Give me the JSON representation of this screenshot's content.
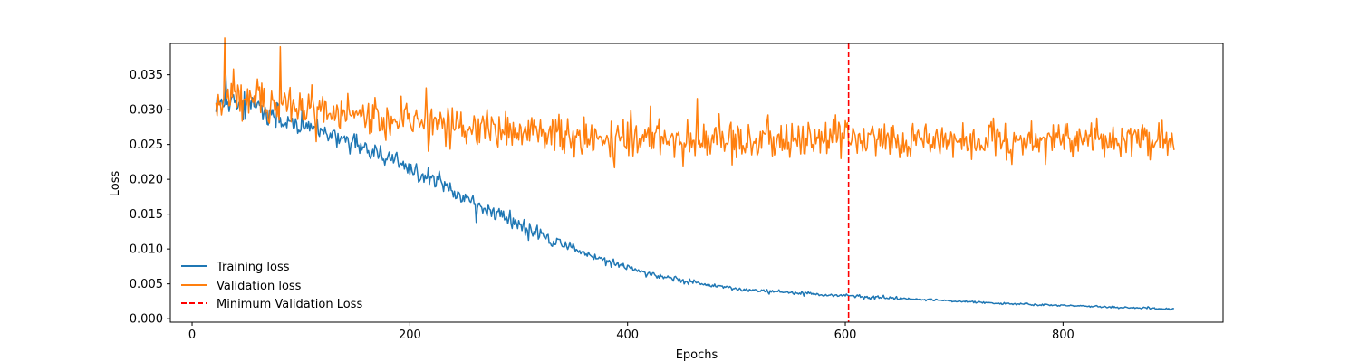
{
  "chart_data": {
    "type": "line",
    "title": "",
    "xlabel": "Epochs",
    "ylabel": "Loss",
    "xlim": [
      -20,
      947
    ],
    "ylim": [
      -0.0005,
      0.0395
    ],
    "x_ticks": [
      0,
      200,
      400,
      600,
      800
    ],
    "x_tick_labels": [
      "0",
      "200",
      "400",
      "600",
      "800"
    ],
    "y_ticks": [
      0.0,
      0.005,
      0.01,
      0.015,
      0.02,
      0.025,
      0.03,
      0.035
    ],
    "y_tick_labels": [
      "0.000",
      "0.005",
      "0.010",
      "0.015",
      "0.020",
      "0.025",
      "0.030",
      "0.035"
    ],
    "grid": false,
    "legend_position": "lower-left",
    "x_range": [
      22,
      902
    ],
    "series": [
      {
        "name": "Training loss",
        "color": "#1f77b4",
        "style": "solid",
        "x": [
          22,
          40,
          60,
          80,
          100,
          120,
          140,
          160,
          180,
          200,
          220,
          240,
          260,
          280,
          300,
          320,
          340,
          360,
          380,
          400,
          420,
          440,
          460,
          480,
          500,
          520,
          540,
          560,
          580,
          600,
          620,
          640,
          660,
          680,
          700,
          720,
          740,
          760,
          780,
          800,
          820,
          840,
          860,
          880,
          902
        ],
        "y": [
          0.031,
          0.031,
          0.03,
          0.0285,
          0.0278,
          0.027,
          0.0258,
          0.0245,
          0.023,
          0.0215,
          0.02,
          0.0185,
          0.0165,
          0.015,
          0.0135,
          0.0122,
          0.0108,
          0.0095,
          0.0083,
          0.0073,
          0.0065,
          0.0058,
          0.0052,
          0.0047,
          0.0043,
          0.004,
          0.0038,
          0.0036,
          0.0034,
          0.0033,
          0.0031,
          0.003,
          0.0028,
          0.0027,
          0.0025,
          0.0024,
          0.0022,
          0.0021,
          0.002,
          0.0019,
          0.0018,
          0.0017,
          0.0016,
          0.0015,
          0.0014
        ],
        "noise": [
          0.0016,
          0.0016,
          0.0015,
          0.0013,
          0.0012,
          0.0011,
          0.0011,
          0.001,
          0.001,
          0.001,
          0.0009,
          0.0009,
          0.0008,
          0.0008,
          0.0007,
          0.0007,
          0.0006,
          0.0005,
          0.0004,
          0.0004,
          0.0003,
          0.0003,
          0.0003,
          0.0002,
          0.0002,
          0.0002,
          0.0002,
          0.0002,
          0.0002,
          0.0002,
          0.0002,
          0.0002,
          0.0001,
          0.0001,
          0.0001,
          0.0001,
          0.0001,
          0.0001,
          0.0001,
          0.0001,
          0.0001,
          0.0001,
          0.0001,
          0.0001,
          0.0001
        ]
      },
      {
        "name": "Validation loss",
        "color": "#ff7f0e",
        "style": "solid",
        "x": [
          22,
          40,
          60,
          80,
          100,
          120,
          140,
          160,
          180,
          200,
          250,
          300,
          350,
          400,
          450,
          500,
          550,
          600,
          650,
          700,
          750,
          800,
          850,
          902
        ],
        "y": [
          0.0312,
          0.0318,
          0.0312,
          0.0305,
          0.03,
          0.0297,
          0.0293,
          0.0289,
          0.0285,
          0.0282,
          0.0274,
          0.0268,
          0.0262,
          0.026,
          0.0259,
          0.0258,
          0.0257,
          0.0257,
          0.0257,
          0.0257,
          0.0257,
          0.0256,
          0.0256,
          0.0256
        ],
        "noise": [
          0.0022,
          0.0026,
          0.0024,
          0.0022,
          0.0021,
          0.002,
          0.002,
          0.002,
          0.002,
          0.002,
          0.0019,
          0.0019,
          0.0019,
          0.0019,
          0.0019,
          0.0019,
          0.0019,
          0.0019,
          0.0019,
          0.0019,
          0.0019,
          0.0019,
          0.0019,
          0.0019
        ]
      }
    ],
    "vline": {
      "name": "Minimum Validation Loss",
      "x": 603,
      "color": "#ff0000",
      "style": "dashed"
    }
  }
}
